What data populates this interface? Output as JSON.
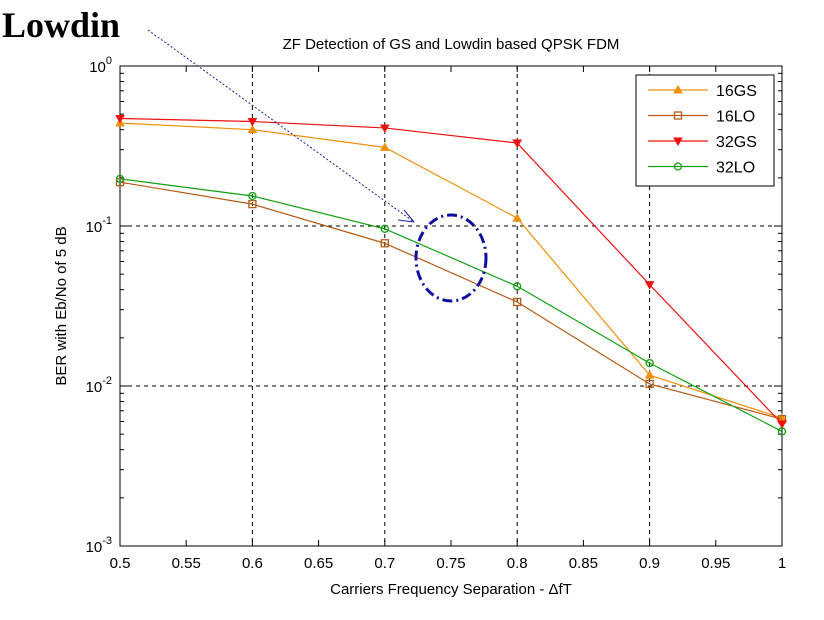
{
  "annotation": {
    "label": "Lowdin"
  },
  "chart_data": {
    "type": "line",
    "title": "ZF Detection of GS and Lowdin based QPSK FDM",
    "xlabel": "Carriers Frequency Separation - ΔfT",
    "ylabel": "BER with Eb/No of 5 dB",
    "xlim": [
      0.5,
      1
    ],
    "ylim": [
      0.001,
      1
    ],
    "yscale": "log",
    "grid": true,
    "legend_position": "top-right",
    "xticks": [
      "0.5",
      "0.55",
      "0.6",
      "0.65",
      "0.7",
      "0.75",
      "0.8",
      "0.85",
      "0.9",
      "0.95",
      "1"
    ],
    "yticks": [
      {
        "base": "10",
        "exp": "0"
      },
      {
        "base": "10",
        "exp": "-1"
      },
      {
        "base": "10",
        "exp": "-2"
      },
      {
        "base": "10",
        "exp": "-3"
      }
    ],
    "x": [
      0.5,
      0.6,
      0.7,
      0.8,
      0.9,
      1.0
    ],
    "series": [
      {
        "name": "16GS",
        "color": "#f0900a",
        "marker": "triangle-up",
        "values": [
          0.44,
          0.4,
          0.31,
          0.112,
          0.0117,
          0.0063
        ]
      },
      {
        "name": "16LO",
        "color": "#b85a14",
        "marker": "square",
        "values": [
          0.188,
          0.137,
          0.078,
          0.0335,
          0.0103,
          0.0062
        ]
      },
      {
        "name": "32GS",
        "color": "#f01010",
        "marker": "triangle-down",
        "values": [
          0.47,
          0.45,
          0.41,
          0.33,
          0.043,
          0.0058
        ]
      },
      {
        "name": "32LO",
        "color": "#10a010",
        "marker": "circle",
        "values": [
          0.197,
          0.154,
          0.096,
          0.042,
          0.0139,
          0.0052
        ]
      }
    ]
  }
}
